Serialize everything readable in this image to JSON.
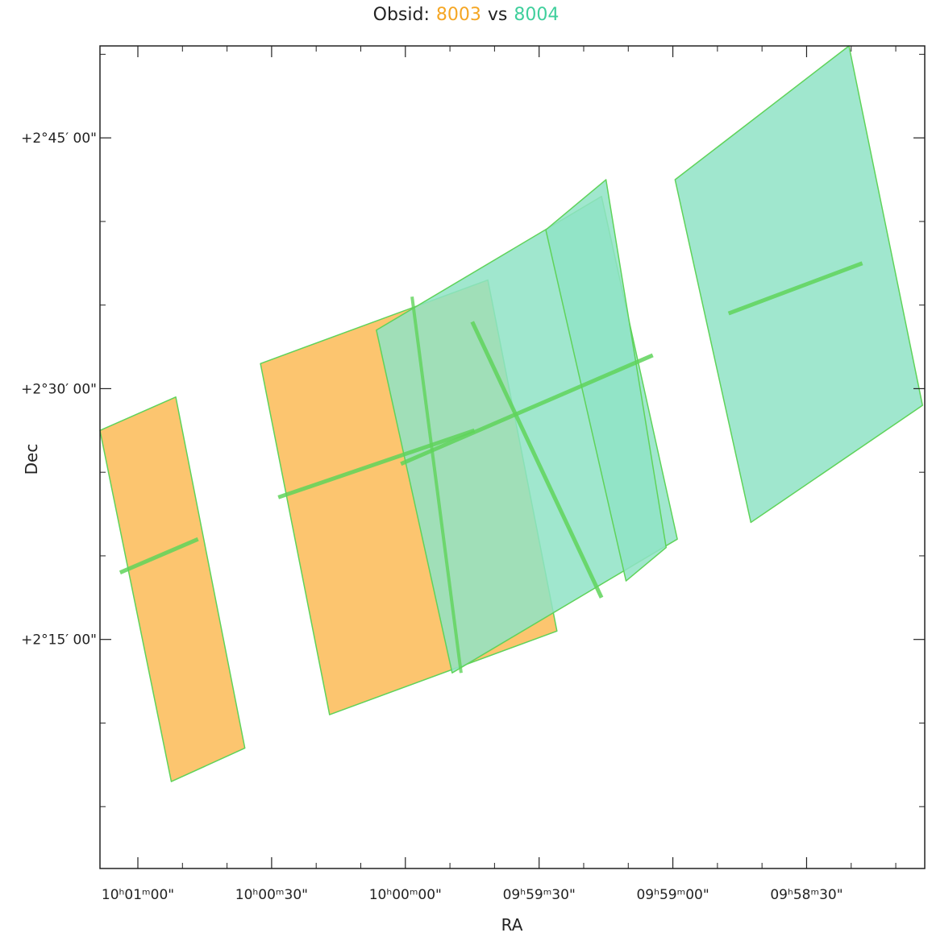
{
  "title": {
    "prefix": "Obsid:",
    "obsid_a": "8003",
    "separator": "vs",
    "obsid_b": "8004"
  },
  "colors": {
    "obsid_8003_fill": "#fcc56f",
    "obsid_8004_fill": "#8fe3c5",
    "overlap_fill": "#8fcf7f",
    "outline": "#5fd35a",
    "title_8003": "#f5a623",
    "title_8004": "#3fcf9c"
  },
  "chart_data": {
    "type": "sky-footprint",
    "xlabel": "RA",
    "ylabel": "Dec",
    "x_ticks": [
      "10ʰ01ᵐ00ʺ",
      "10ʰ00ᵐ30ʺ",
      "10ʰ00ᵐ00ʺ",
      "09ʰ59ᵐ30ʺ",
      "09ʰ59ᵐ00ʺ",
      "09ʰ58ᵐ30ʺ"
    ],
    "x_tick_labels": [
      "10ʰ01ᵐ00\"",
      "10ʰ00ᵐ30\"",
      "10ʰ00ᵐ00\"",
      "09ʰ59ᵐ30\"",
      "09ʰ59ᵐ00\"",
      "09ʰ58ᵐ30\""
    ],
    "x_tick_seconds": [
      36060,
      36030,
      36000,
      35970,
      35940,
      35910
    ],
    "y_tick_labels": [
      "+2°45′ 00\"",
      "+2°30′ 00\"",
      "+2°15′ 00\""
    ],
    "y_tick_arcmin": [
      165,
      150,
      135
    ],
    "x_range_seconds": [
      36068.5,
      35883.5
    ],
    "y_range_arcmin": [
      170.5,
      121.3
    ],
    "footprints": [
      {
        "obsid": "8003",
        "fields": [
          {
            "corners": [
              [
                36068.5,
                147.5
              ],
              [
                36052.5,
                126.5
              ],
              [
                36036.0,
                128.5
              ],
              [
                36051.5,
                149.5
              ]
            ],
            "line": [
              [
                36064.0,
                139.0
              ],
              [
                36046.5,
                141.0
              ]
            ]
          },
          {
            "corners": [
              [
                36032.5,
                151.5
              ],
              [
                36017.0,
                130.5
              ],
              [
                35966.0,
                135.5
              ],
              [
                35981.5,
                156.5
              ]
            ],
            "line": [
              [
                36028.5,
                143.5
              ],
              [
                35984.5,
                147.5
              ]
            ]
          }
        ]
      },
      {
        "obsid": "8004",
        "fields": [
          {
            "corners": [
              [
                36006.5,
                153.5
              ],
              [
                35989.5,
                133.0
              ],
              [
                35939.0,
                141.0
              ],
              [
                35956.0,
                161.5
              ]
            ],
            "line": [
              [
                36001.0,
                145.5
              ],
              [
                35944.5,
                152.0
              ]
            ]
          },
          {
            "corners": [
              [
                35968.5,
                159.5
              ],
              [
                35950.5,
                138.5
              ],
              [
                35941.5,
                140.5
              ],
              [
                35955.0,
                162.5
              ]
            ],
            "line": [
              [
                35985.0,
                154.0
              ],
              [
                35956.0,
                137.5
              ]
            ]
          },
          {
            "corners": [
              [
                35939.5,
                162.5
              ],
              [
                35922.5,
                142.0
              ],
              [
                35884.0,
                149.0
              ],
              [
                35900.5,
                170.5
              ]
            ],
            "line": [
              [
                35927.5,
                154.5
              ],
              [
                35897.5,
                157.5
              ]
            ]
          }
        ]
      }
    ],
    "cross_lines_8003": [
      [
        [
          35998.5,
          155.5
        ],
        [
          35987.5,
          133.0
        ]
      ]
    ]
  }
}
